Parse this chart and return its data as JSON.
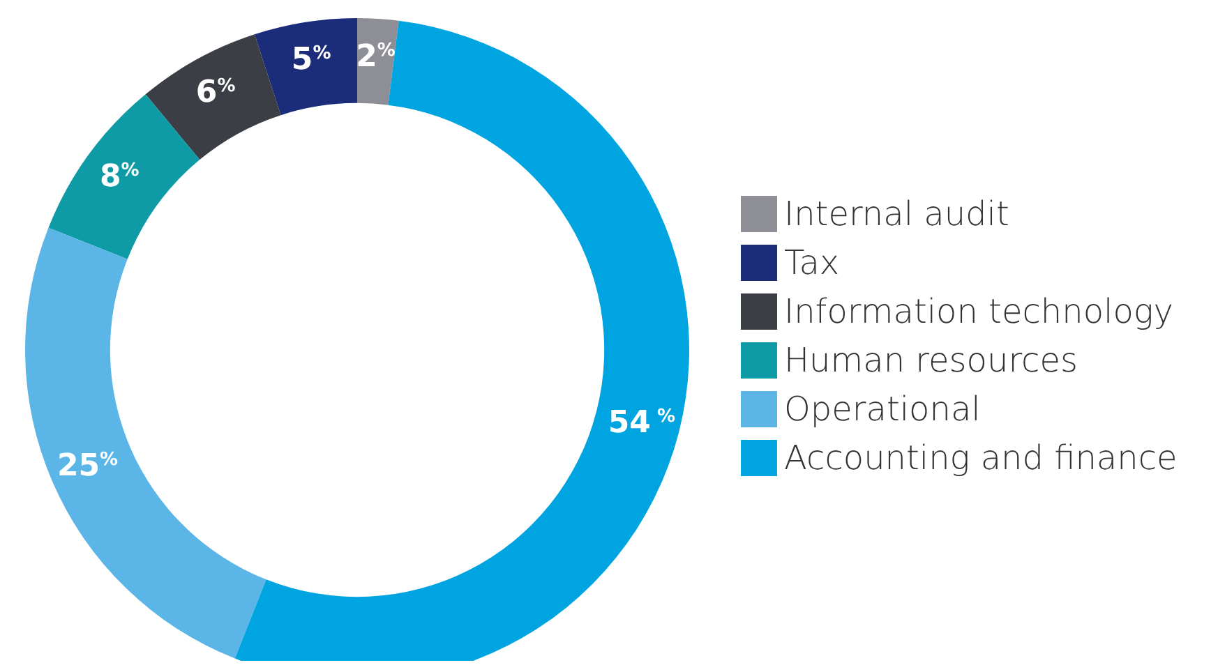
{
  "chart_data": {
    "type": "donut",
    "categories": [
      "Internal audit",
      "Tax",
      "Information technology",
      "Human resources",
      "Operational",
      "Accounting and finance"
    ],
    "values": [
      2,
      5,
      6,
      8,
      25,
      54
    ],
    "colors": [
      "#8e8e96",
      "#1b2c7a",
      "#3b3e45",
      "#0f9ba6",
      "#5bb5e6",
      "#00a4e0"
    ],
    "value_labels": [
      "2%",
      "5%",
      "6%",
      "8%",
      "25%",
      "54 %"
    ],
    "legend": "right"
  }
}
